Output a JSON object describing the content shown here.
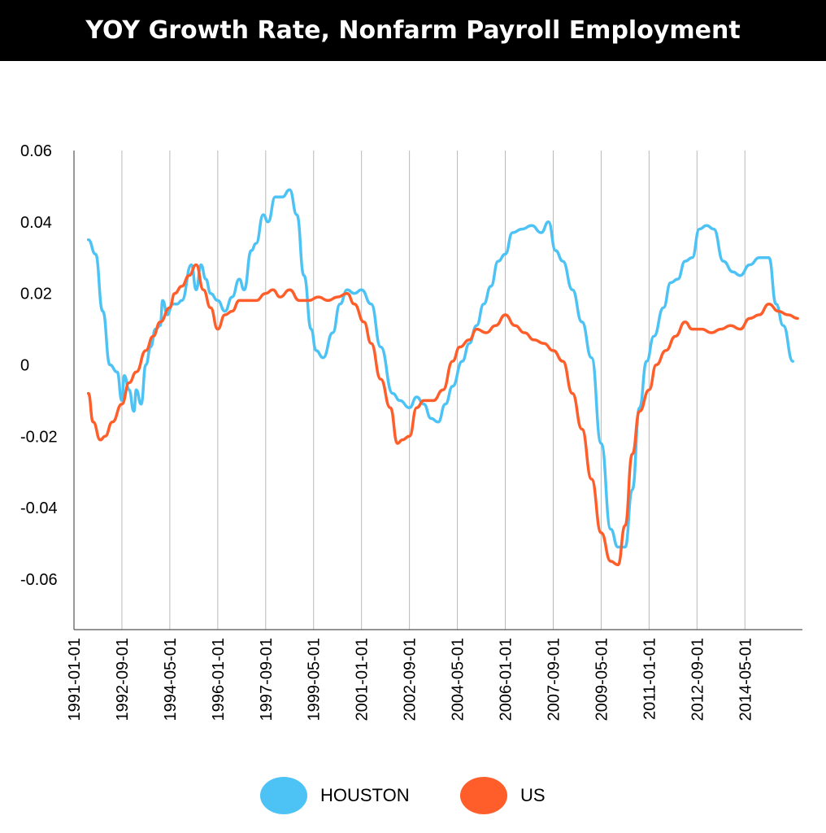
{
  "chart_data": {
    "type": "line",
    "title": "YOY Growth Rate, Nonfarm Payroll Employment",
    "xlabel": "",
    "ylabel": "",
    "ylim": [
      -0.075,
      0.06
    ],
    "yticks": [
      0.06,
      0.04,
      0.02,
      0,
      -0.02,
      -0.04,
      -0.06
    ],
    "ytick_labels": [
      "0.06",
      "0.04",
      "0.02",
      "0",
      "-0.02",
      "-0.04",
      "-0.06"
    ],
    "xlim": [
      "1991-01-01",
      "2016-05-01"
    ],
    "xtick_labels": [
      "1991-01-01",
      "1992-09-01",
      "1994-05-01",
      "1996-01-01",
      "1997-09-01",
      "1999-05-01",
      "2001-01-01",
      "2002-09-01",
      "2004-05-01",
      "2006-01-01",
      "2007-09-01",
      "2009-05-01",
      "2011-01-01",
      "2012-09-01",
      "2014-05-01"
    ],
    "grid": "vertical",
    "legend_position": "bottom",
    "series": [
      {
        "name": "HOUSTON",
        "color": "#4DC3F5",
        "points": [
          [
            "1991-07-01",
            0.035
          ],
          [
            "1991-10-01",
            0.031
          ],
          [
            "1992-01-01",
            0.015
          ],
          [
            "1992-04-01",
            0.0
          ],
          [
            "1992-07-01",
            -0.002
          ],
          [
            "1992-09-01",
            -0.01
          ],
          [
            "1992-10-01",
            -0.003
          ],
          [
            "1992-12-01",
            -0.007
          ],
          [
            "1993-02-01",
            -0.013
          ],
          [
            "1993-03-01",
            -0.007
          ],
          [
            "1993-05-01",
            -0.011
          ],
          [
            "1993-07-01",
            0.0
          ],
          [
            "1993-09-01",
            0.005
          ],
          [
            "1993-11-01",
            0.01
          ],
          [
            "1994-01-01",
            0.011
          ],
          [
            "1994-02-01",
            0.018
          ],
          [
            "1994-04-01",
            0.014
          ],
          [
            "1994-06-01",
            0.017
          ],
          [
            "1994-08-01",
            0.017
          ],
          [
            "1994-10-01",
            0.018
          ],
          [
            "1995-02-01",
            0.028
          ],
          [
            "1995-04-01",
            0.021
          ],
          [
            "1995-06-01",
            0.028
          ],
          [
            "1995-08-01",
            0.024
          ],
          [
            "1995-10-01",
            0.02
          ],
          [
            "1996-01-01",
            0.018
          ],
          [
            "1996-04-01",
            0.015
          ],
          [
            "1996-07-01",
            0.019
          ],
          [
            "1996-10-01",
            0.024
          ],
          [
            "1996-12-01",
            0.021
          ],
          [
            "1997-03-01",
            0.032
          ],
          [
            "1997-05-01",
            0.034
          ],
          [
            "1997-08-01",
            0.042
          ],
          [
            "1997-10-01",
            0.04
          ],
          [
            "1998-01-01",
            0.047
          ],
          [
            "1998-04-01",
            0.047
          ],
          [
            "1998-07-01",
            0.049
          ],
          [
            "1998-10-01",
            0.042
          ],
          [
            "1999-01-01",
            0.025
          ],
          [
            "1999-04-01",
            0.01
          ],
          [
            "1999-06-01",
            0.004
          ],
          [
            "1999-09-01",
            0.002
          ],
          [
            "2000-01-01",
            0.009
          ],
          [
            "2000-04-01",
            0.017
          ],
          [
            "2000-07-01",
            0.021
          ],
          [
            "2000-10-01",
            0.02
          ],
          [
            "2001-01-01",
            0.021
          ],
          [
            "2001-05-01",
            0.017
          ],
          [
            "2001-09-01",
            0.005
          ],
          [
            "2002-02-01",
            -0.008
          ],
          [
            "2002-05-01",
            -0.01
          ],
          [
            "2002-09-01",
            -0.012
          ],
          [
            "2002-12-01",
            -0.009
          ],
          [
            "2003-03-01",
            -0.011
          ],
          [
            "2003-06-01",
            -0.015
          ],
          [
            "2003-09-01",
            -0.016
          ],
          [
            "2003-12-01",
            -0.011
          ],
          [
            "2004-03-01",
            -0.006
          ],
          [
            "2004-07-01",
            0.001
          ],
          [
            "2004-10-01",
            0.006
          ],
          [
            "2005-01-01",
            0.011
          ],
          [
            "2005-04-01",
            0.017
          ],
          [
            "2005-07-01",
            0.022
          ],
          [
            "2005-10-01",
            0.029
          ],
          [
            "2006-01-01",
            0.031
          ],
          [
            "2006-04-01",
            0.037
          ],
          [
            "2006-08-01",
            0.038
          ],
          [
            "2006-12-01",
            0.039
          ],
          [
            "2007-04-01",
            0.037
          ],
          [
            "2007-07-01",
            0.04
          ],
          [
            "2007-10-01",
            0.032
          ],
          [
            "2008-01-01",
            0.029
          ],
          [
            "2008-05-01",
            0.021
          ],
          [
            "2008-09-01",
            0.012
          ],
          [
            "2009-01-01",
            0.002
          ],
          [
            "2009-05-01",
            -0.022
          ],
          [
            "2009-09-01",
            -0.046
          ],
          [
            "2009-12-01",
            -0.051
          ],
          [
            "2010-03-01",
            -0.051
          ],
          [
            "2010-06-01",
            -0.035
          ],
          [
            "2010-09-01",
            -0.012
          ],
          [
            "2010-12-01",
            0.001
          ],
          [
            "2011-03-01",
            0.008
          ],
          [
            "2011-07-01",
            0.016
          ],
          [
            "2011-10-01",
            0.023
          ],
          [
            "2012-01-01",
            0.024
          ],
          [
            "2012-04-01",
            0.029
          ],
          [
            "2012-07-01",
            0.03
          ],
          [
            "2012-10-01",
            0.038
          ],
          [
            "2013-01-01",
            0.039
          ],
          [
            "2013-04-01",
            0.038
          ],
          [
            "2013-08-01",
            0.029
          ],
          [
            "2013-12-01",
            0.026
          ],
          [
            "2014-03-01",
            0.025
          ],
          [
            "2014-07-01",
            0.028
          ],
          [
            "2014-11-01",
            0.03
          ],
          [
            "2015-03-01",
            0.03
          ],
          [
            "2015-06-01",
            0.017
          ],
          [
            "2015-09-01",
            0.011
          ],
          [
            "2016-01-01",
            0.001
          ]
        ]
      },
      {
        "name": "US",
        "color": "#FF5E2B",
        "points": [
          [
            "1991-07-01",
            -0.008
          ],
          [
            "1991-09-01",
            -0.016
          ],
          [
            "1991-12-01",
            -0.021
          ],
          [
            "1992-02-01",
            -0.02
          ],
          [
            "1992-05-01",
            -0.016
          ],
          [
            "1992-09-01",
            -0.011
          ],
          [
            "1992-12-01",
            -0.005
          ],
          [
            "1993-03-01",
            -0.002
          ],
          [
            "1993-07-01",
            0.004
          ],
          [
            "1993-10-01",
            0.008
          ],
          [
            "1994-01-01",
            0.012
          ],
          [
            "1994-05-01",
            0.016
          ],
          [
            "1994-07-01",
            0.02
          ],
          [
            "1994-10-01",
            0.022
          ],
          [
            "1995-01-01",
            0.025
          ],
          [
            "1995-04-01",
            0.028
          ],
          [
            "1995-07-01",
            0.021
          ],
          [
            "1995-10-01",
            0.016
          ],
          [
            "1996-01-01",
            0.01
          ],
          [
            "1996-04-01",
            0.014
          ],
          [
            "1996-07-01",
            0.015
          ],
          [
            "1996-10-01",
            0.018
          ],
          [
            "1997-02-01",
            0.018
          ],
          [
            "1997-05-01",
            0.018
          ],
          [
            "1997-09-01",
            0.02
          ],
          [
            "1997-12-01",
            0.021
          ],
          [
            "1998-03-01",
            0.019
          ],
          [
            "1998-07-01",
            0.021
          ],
          [
            "1998-11-01",
            0.018
          ],
          [
            "1999-03-01",
            0.018
          ],
          [
            "1999-07-01",
            0.019
          ],
          [
            "1999-11-01",
            0.018
          ],
          [
            "2000-03-01",
            0.019
          ],
          [
            "2000-07-01",
            0.02
          ],
          [
            "2000-10-01",
            0.017
          ],
          [
            "2001-02-01",
            0.012
          ],
          [
            "2001-05-01",
            0.006
          ],
          [
            "2001-09-01",
            -0.004
          ],
          [
            "2002-01-01",
            -0.012
          ],
          [
            "2002-04-01",
            -0.022
          ],
          [
            "2002-06-01",
            -0.021
          ],
          [
            "2002-09-01",
            -0.02
          ],
          [
            "2002-12-01",
            -0.012
          ],
          [
            "2003-03-01",
            -0.01
          ],
          [
            "2003-07-01",
            -0.01
          ],
          [
            "2003-11-01",
            -0.007
          ],
          [
            "2004-03-01",
            0.001
          ],
          [
            "2004-06-01",
            0.005
          ],
          [
            "2004-10-01",
            0.007
          ],
          [
            "2005-01-01",
            0.01
          ],
          [
            "2005-05-01",
            0.009
          ],
          [
            "2005-09-01",
            0.011
          ],
          [
            "2006-01-01",
            0.014
          ],
          [
            "2006-05-01",
            0.011
          ],
          [
            "2006-09-01",
            0.009
          ],
          [
            "2007-01-01",
            0.007
          ],
          [
            "2007-05-01",
            0.006
          ],
          [
            "2007-09-01",
            0.004
          ],
          [
            "2008-01-01",
            0.001
          ],
          [
            "2008-05-01",
            -0.008
          ],
          [
            "2008-09-01",
            -0.018
          ],
          [
            "2009-01-01",
            -0.032
          ],
          [
            "2009-05-01",
            -0.047
          ],
          [
            "2009-09-01",
            -0.055
          ],
          [
            "2009-12-01",
            -0.056
          ],
          [
            "2010-03-01",
            -0.045
          ],
          [
            "2010-06-01",
            -0.025
          ],
          [
            "2010-09-01",
            -0.013
          ],
          [
            "2011-01-01",
            -0.007
          ],
          [
            "2011-04-01",
            0.0
          ],
          [
            "2011-08-01",
            0.004
          ],
          [
            "2011-12-01",
            0.008
          ],
          [
            "2012-04-01",
            0.012
          ],
          [
            "2012-07-01",
            0.01
          ],
          [
            "2012-11-01",
            0.01
          ],
          [
            "2013-03-01",
            0.009
          ],
          [
            "2013-07-01",
            0.01
          ],
          [
            "2013-11-01",
            0.011
          ],
          [
            "2014-03-01",
            0.01
          ],
          [
            "2014-07-01",
            0.013
          ],
          [
            "2014-11-01",
            0.014
          ],
          [
            "2015-03-01",
            0.017
          ],
          [
            "2015-07-01",
            0.015
          ],
          [
            "2015-11-01",
            0.014
          ],
          [
            "2016-03-01",
            0.013
          ]
        ]
      }
    ]
  }
}
